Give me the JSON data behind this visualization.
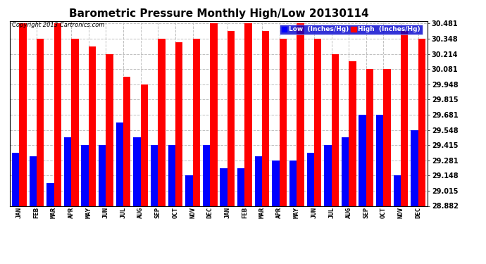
{
  "title": "Barometric Pressure Monthly High/Low 20130114",
  "copyright": "Copyright 2013 Cartronics.com",
  "months": [
    "JAN",
    "FEB",
    "MAR",
    "APR",
    "MAY",
    "JUN",
    "JUL",
    "AUG",
    "SEP",
    "OCT",
    "NOV",
    "DEC",
    "JAN",
    "FEB",
    "MAR",
    "APR",
    "MAY",
    "JUN",
    "JUL",
    "AUG",
    "SEP",
    "OCT",
    "NOV",
    "DEC"
  ],
  "high_values": [
    30.481,
    30.348,
    30.481,
    30.348,
    30.281,
    30.214,
    30.015,
    29.948,
    30.348,
    30.315,
    30.348,
    30.481,
    30.415,
    30.481,
    30.415,
    30.348,
    30.481,
    30.348,
    30.214,
    30.148,
    30.081,
    30.081,
    30.415,
    30.348
  ],
  "low_values": [
    29.348,
    29.315,
    29.08,
    29.481,
    29.415,
    29.415,
    29.615,
    29.481,
    29.415,
    29.415,
    29.148,
    29.415,
    29.215,
    29.215,
    29.315,
    29.281,
    29.281,
    29.348,
    29.415,
    29.481,
    29.681,
    29.681,
    29.148,
    29.548
  ],
  "ymin": 28.882,
  "ymax": 30.481,
  "yticks": [
    28.882,
    29.015,
    29.148,
    29.281,
    29.415,
    29.548,
    29.681,
    29.815,
    29.948,
    30.081,
    30.214,
    30.348,
    30.481
  ],
  "bar_color_high": "#FF0000",
  "bar_color_low": "#0000FF",
  "bg_color": "#FFFFFF",
  "grid_color": "#C0C0C0",
  "title_fontsize": 11,
  "bar_width": 0.42
}
